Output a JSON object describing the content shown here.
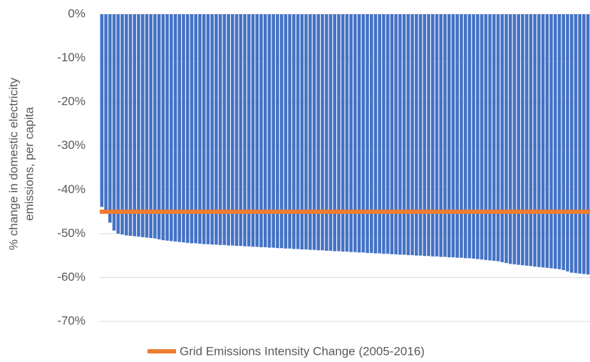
{
  "chart_data": {
    "type": "bar",
    "ylabel": [
      "% change in domestic electricity",
      "emissions, per capita"
    ],
    "categories": [
      null,
      null,
      null,
      null,
      null,
      null,
      null,
      null,
      null,
      null,
      null,
      null,
      null,
      null,
      null,
      null,
      null,
      null,
      null,
      null,
      null,
      null,
      null,
      null,
      null,
      null,
      null,
      null,
      null,
      null,
      null,
      null,
      null,
      null,
      null,
      null,
      null,
      null,
      null,
      null,
      null,
      null,
      null,
      null,
      null,
      null,
      null,
      null,
      null,
      null,
      null,
      null,
      null,
      null,
      null,
      null,
      null,
      null,
      null,
      null,
      null,
      null,
      null,
      null,
      null,
      null,
      null,
      null,
      null,
      null,
      null,
      null,
      null,
      null,
      null,
      null,
      null,
      null,
      null,
      null,
      null,
      null,
      null,
      null,
      null,
      null,
      null,
      null,
      null,
      null,
      null,
      null,
      null,
      null,
      null,
      null,
      null,
      null,
      null,
      null,
      null,
      null,
      null,
      null,
      null,
      null,
      null,
      null,
      null,
      null,
      null,
      null,
      null,
      null,
      null,
      null,
      null,
      null,
      null,
      null
    ],
    "values": [
      -43.9,
      -45.2,
      -47.5,
      -49.3,
      -50.0,
      -50.2,
      -50.4,
      -50.5,
      -50.6,
      -50.7,
      -50.8,
      -50.9,
      -51.0,
      -51.1,
      -51.3,
      -51.5,
      -51.6,
      -51.7,
      -51.8,
      -51.9,
      -52.0,
      -52.1,
      -52.2,
      -52.2,
      -52.3,
      -52.4,
      -52.4,
      -52.5,
      -52.5,
      -52.6,
      -52.6,
      -52.7,
      -52.7,
      -52.8,
      -52.8,
      -52.9,
      -52.9,
      -53.0,
      -53.0,
      -53.1,
      -53.1,
      -53.2,
      -53.2,
      -53.3,
      -53.3,
      -53.4,
      -53.4,
      -53.5,
      -53.5,
      -53.6,
      -53.6,
      -53.7,
      -53.7,
      -53.8,
      -53.8,
      -53.9,
      -53.9,
      -54.0,
      -54.0,
      -54.1,
      -54.1,
      -54.2,
      -54.2,
      -54.3,
      -54.3,
      -54.4,
      -54.4,
      -54.5,
      -54.5,
      -54.6,
      -54.6,
      -54.7,
      -54.7,
      -54.8,
      -54.8,
      -54.9,
      -54.9,
      -55.0,
      -55.0,
      -55.1,
      -55.1,
      -55.2,
      -55.2,
      -55.3,
      -55.3,
      -55.4,
      -55.4,
      -55.5,
      -55.5,
      -55.6,
      -55.6,
      -55.7,
      -55.8,
      -55.9,
      -56.0,
      -56.1,
      -56.2,
      -56.3,
      -56.5,
      -56.7,
      -56.9,
      -57.0,
      -57.1,
      -57.2,
      -57.3,
      -57.4,
      -57.5,
      -57.6,
      -57.7,
      -57.8,
      -57.9,
      -58.0,
      -58.1,
      -58.3,
      -58.6,
      -58.9,
      -59.0,
      -59.1,
      -59.2,
      -59.3
    ],
    "color": "#4472c4",
    "reference_line": {
      "name": "Grid Emissions Intensity Change (2005-2016)",
      "value": -45,
      "color": "#ed7d31"
    },
    "ylim": [
      -70,
      0
    ],
    "yticks": [
      {
        "value": 0,
        "label": "0%"
      },
      {
        "value": -10,
        "label": "-10%"
      },
      {
        "value": -20,
        "label": "-20%"
      },
      {
        "value": -30,
        "label": "-30%"
      },
      {
        "value": -40,
        "label": "-40%"
      },
      {
        "value": -50,
        "label": "-50%"
      },
      {
        "value": -60,
        "label": "-60%"
      },
      {
        "value": -70,
        "label": "-70%"
      }
    ],
    "grid": true
  }
}
